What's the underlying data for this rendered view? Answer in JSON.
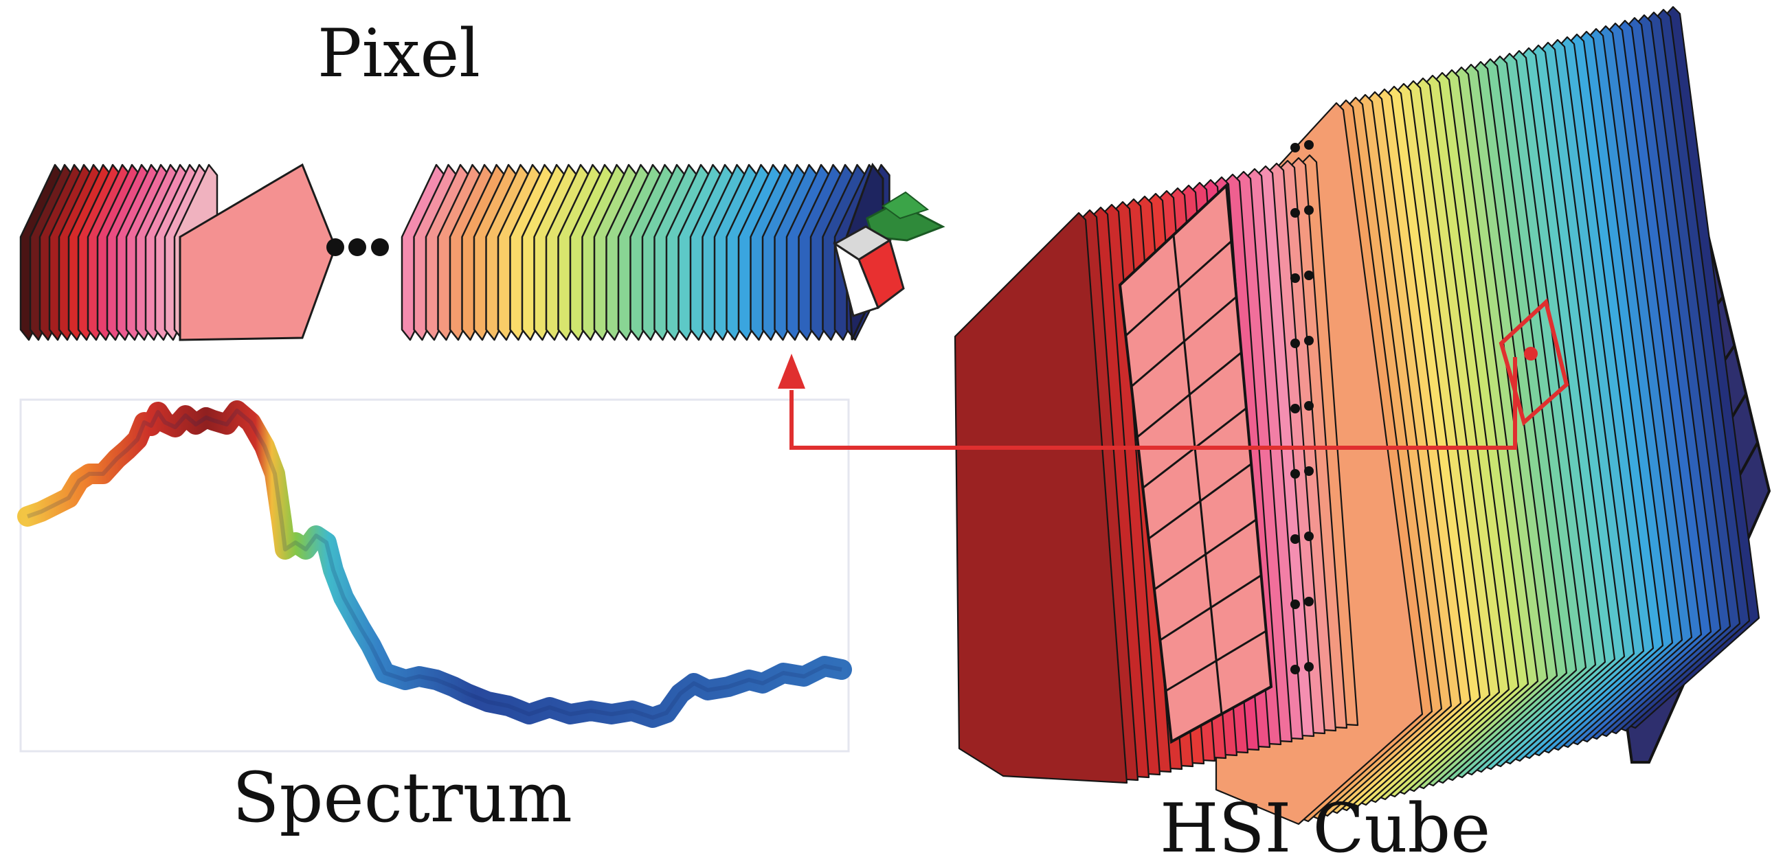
{
  "labels": {
    "pixel": "Pixel",
    "spectrum": "Spectrum",
    "hsi_cube": "HSI Cube"
  },
  "colors": {
    "accent_arrow": "#e02f2f",
    "cube_face": "#2e2f6e",
    "pixel_highlight": "#f49191",
    "band_palette": [
      "#5a1a1a",
      "#c62828",
      "#e53935",
      "#ec407a",
      "#f48fb1",
      "#f4a060",
      "#fbe06b",
      "#cfe66f",
      "#7fd39a",
      "#5cc9c9",
      "#3aa8e0",
      "#2f6bc6",
      "#23307a"
    ]
  },
  "icons": {
    "ellipsis": "ellipsis-dots-icon",
    "arrow": "arrow-up-icon",
    "mini_cube": "mini-cube-icon",
    "tree": "tree-icon"
  }
}
